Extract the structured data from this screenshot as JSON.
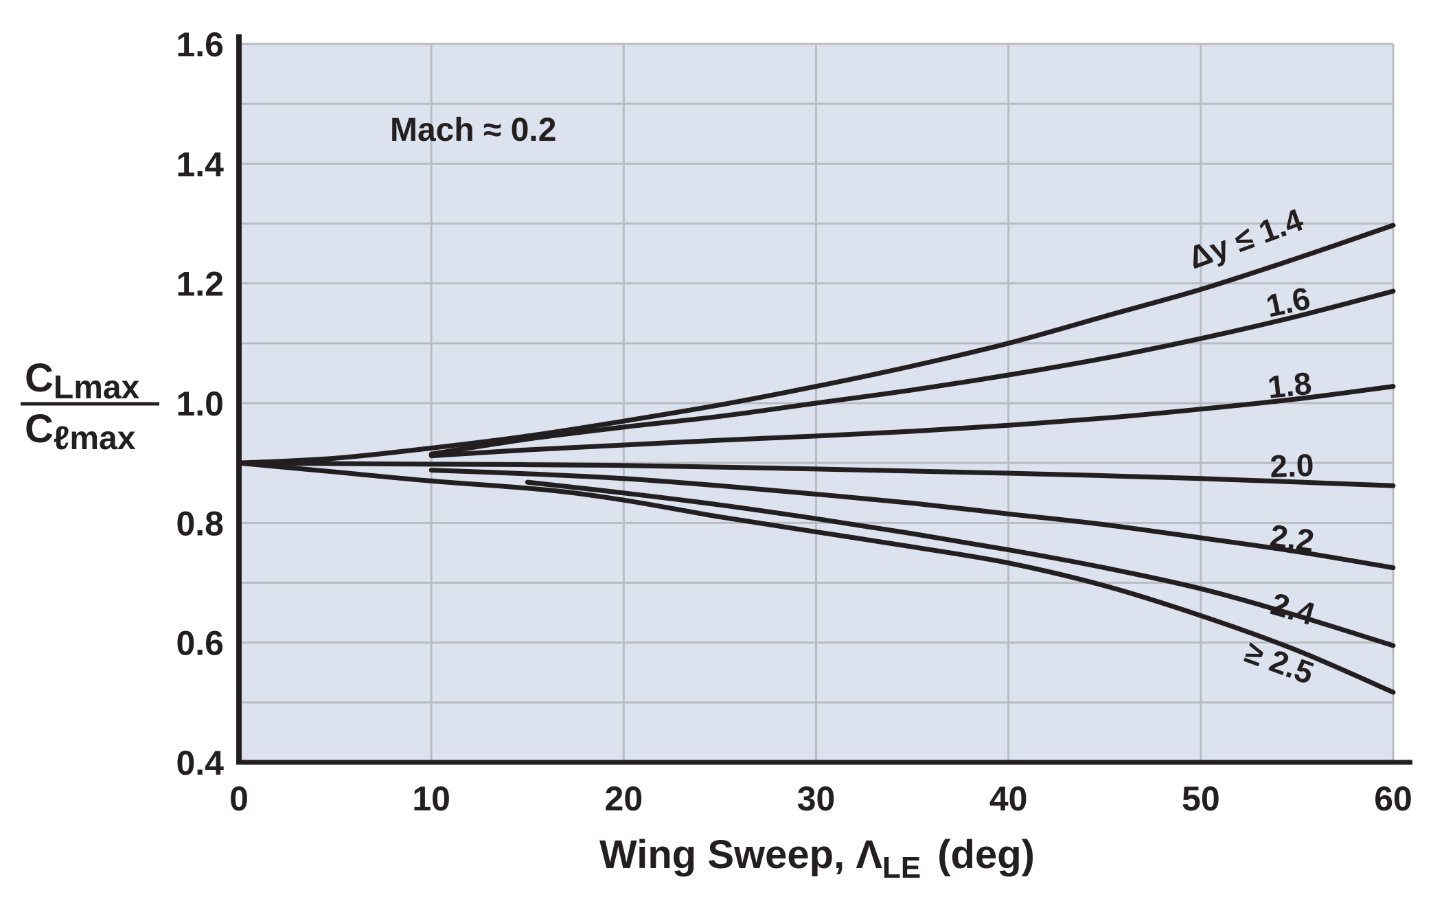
{
  "chart_data": {
    "type": "line",
    "xlabel": "Wing Sweep, ",
    "xlabel_symbol": "Λ",
    "xlabel_subscript": "LE",
    "xlabel_unit": "(deg)",
    "ylabel_numerator_main": "C",
    "ylabel_numerator_sub": "Lmax",
    "ylabel_denominator_main": "C",
    "ylabel_denominator_sub": "ℓmax",
    "annotation": "Mach ≈ 0.2",
    "xlim": [
      0,
      60
    ],
    "ylim": [
      0.4,
      1.6
    ],
    "xticks": [
      "0",
      "10",
      "20",
      "30",
      "40",
      "50",
      "60"
    ],
    "yticks": [
      "0.4",
      "0.6",
      "0.8",
      "1.0",
      "1.2",
      "1.4",
      "1.6"
    ],
    "grid": true,
    "series": [
      {
        "name": "Δy ≤ 1.4",
        "x": [
          0,
          5,
          10,
          15,
          20,
          25,
          30,
          35,
          40,
          45,
          50,
          55,
          60
        ],
        "y": [
          0.9,
          0.908,
          0.925,
          0.945,
          0.97,
          0.997,
          1.028,
          1.062,
          1.1,
          1.145,
          1.19,
          1.242,
          1.297
        ]
      },
      {
        "name": "1.6",
        "x": [
          10,
          15,
          20,
          25,
          30,
          35,
          40,
          45,
          50,
          55,
          60
        ],
        "y": [
          0.915,
          0.94,
          0.96,
          0.978,
          1.0,
          1.022,
          1.047,
          1.075,
          1.108,
          1.145,
          1.187
        ]
      },
      {
        "name": "1.8",
        "x": [
          10,
          15,
          20,
          25,
          30,
          35,
          40,
          45,
          50,
          55,
          60
        ],
        "y": [
          0.912,
          0.922,
          0.93,
          0.938,
          0.945,
          0.953,
          0.963,
          0.975,
          0.99,
          1.007,
          1.028
        ]
      },
      {
        "name": "2.0",
        "x": [
          0,
          10,
          20,
          30,
          40,
          50,
          60
        ],
        "y": [
          0.9,
          0.898,
          0.896,
          0.89,
          0.883,
          0.874,
          0.862
        ]
      },
      {
        "name": "2.2",
        "x": [
          10,
          15,
          20,
          25,
          30,
          35,
          40,
          45,
          50,
          55,
          60
        ],
        "y": [
          0.888,
          0.882,
          0.874,
          0.862,
          0.848,
          0.833,
          0.815,
          0.797,
          0.775,
          0.752,
          0.725
        ]
      },
      {
        "name": "2.4",
        "x": [
          15,
          20,
          25,
          30,
          35,
          40,
          45,
          50,
          55,
          60
        ],
        "y": [
          0.868,
          0.85,
          0.83,
          0.807,
          0.782,
          0.755,
          0.725,
          0.69,
          0.645,
          0.595
        ]
      },
      {
        "name": "≥ 2.5",
        "x": [
          0,
          5,
          10,
          16,
          20,
          25,
          30,
          35,
          40,
          45,
          50,
          55,
          60
        ],
        "y": [
          0.9,
          0.885,
          0.87,
          0.855,
          0.838,
          0.81,
          0.785,
          0.76,
          0.733,
          0.695,
          0.645,
          0.587,
          0.517
        ]
      }
    ]
  }
}
